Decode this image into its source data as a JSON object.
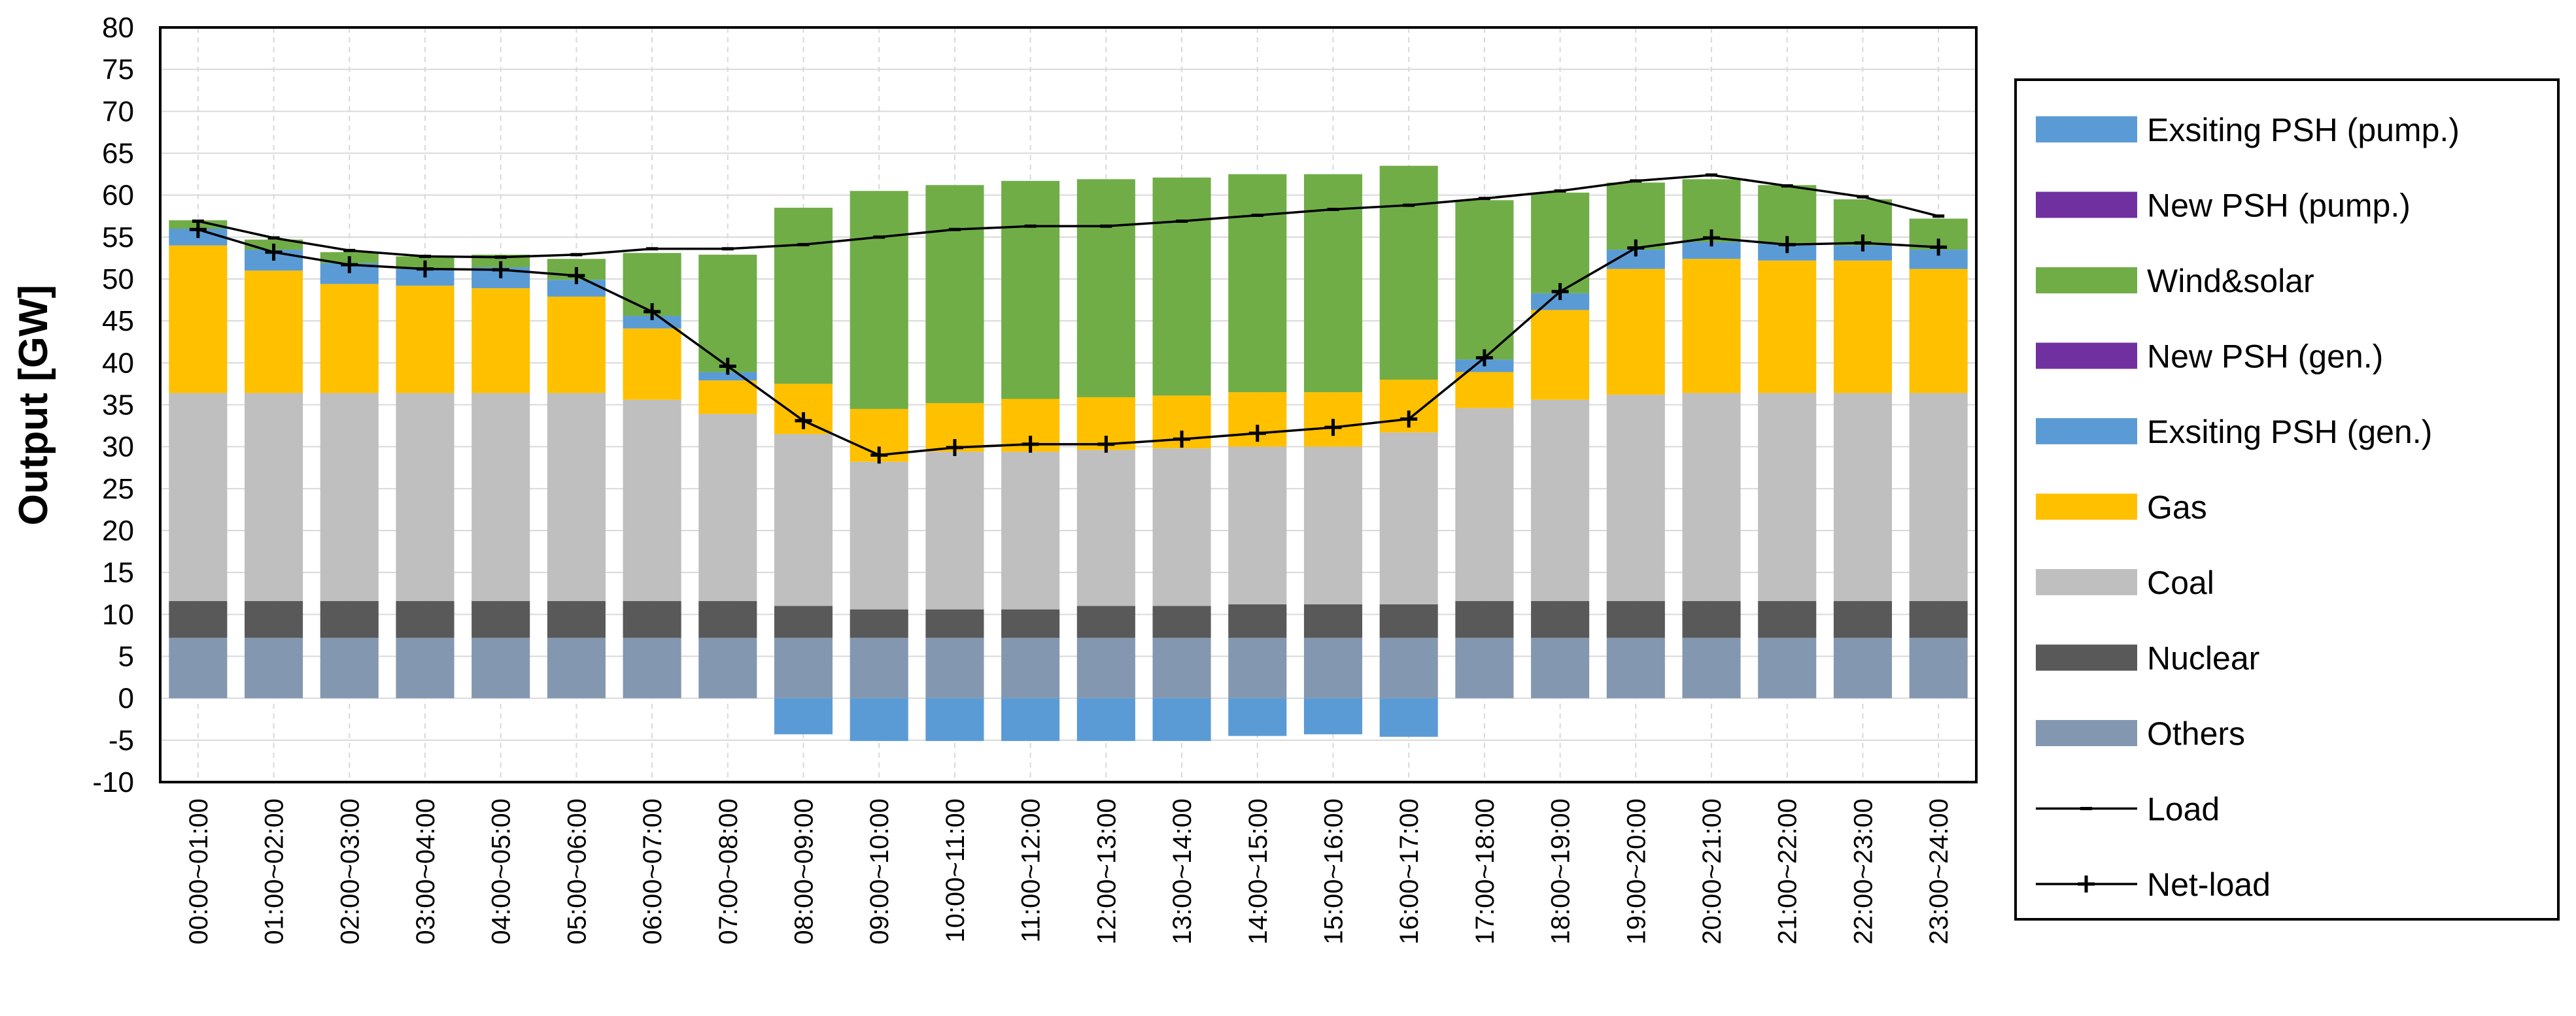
{
  "chart_data": {
    "type": "bar",
    "title": "",
    "xlabel": "",
    "ylabel": "Output [GW]",
    "ylim": [
      -10,
      80
    ],
    "ytick_step": 5,
    "grid": true,
    "legend_position": "right",
    "categories": [
      "00:00~01:00",
      "01:00~02:00",
      "02:00~03:00",
      "03:00~04:00",
      "04:00~05:00",
      "05:00~06:00",
      "06:00~07:00",
      "07:00~08:00",
      "08:00~09:00",
      "09:00~10:00",
      "10:00~11:00",
      "11:00~12:00",
      "12:00~13:00",
      "13:00~14:00",
      "14:00~15:00",
      "15:00~16:00",
      "16:00~17:00",
      "17:00~18:00",
      "18:00~19:00",
      "19:00~20:00",
      "20:00~21:00",
      "21:00~22:00",
      "22:00~23:00",
      "23:00~24:00"
    ],
    "stack_order": [
      "Others",
      "Nuclear",
      "Coal",
      "Gas",
      "Exsiting PSH (gen.)",
      "New PSH (gen.)",
      "Wind&solar"
    ],
    "series": [
      {
        "name": "Exsiting PSH (pump.)",
        "kind": "bar",
        "color": "#5B9BD5",
        "values": [
          0,
          0,
          0,
          0,
          0,
          0,
          0,
          0,
          -4.3,
          -5.1,
          -5.1,
          -5.1,
          -5.1,
          -5.1,
          -4.5,
          -4.3,
          -4.6,
          0,
          0,
          0,
          0,
          0,
          0,
          0
        ]
      },
      {
        "name": "New PSH (pump.)",
        "kind": "bar",
        "color": "#7030A0",
        "values": [
          0,
          0,
          0,
          0,
          0,
          0,
          0,
          0,
          0,
          0,
          0,
          0,
          0,
          0,
          0,
          0,
          0,
          0,
          0,
          0,
          0,
          0,
          0,
          0
        ]
      },
      {
        "name": "Wind&solar",
        "kind": "bar",
        "color": "#70AD47",
        "values": [
          1.0,
          1.2,
          1.3,
          1.5,
          1.5,
          2.5,
          7.5,
          14.0,
          21.0,
          26.0,
          26.0,
          26.0,
          26.0,
          26.0,
          26.0,
          26.0,
          25.5,
          19.0,
          12.0,
          8.0,
          7.5,
          7.0,
          5.5,
          3.7
        ]
      },
      {
        "name": "New PSH (gen.)",
        "kind": "bar",
        "color": "#7030A0",
        "values": [
          0,
          0,
          0,
          0,
          0,
          0,
          0,
          0,
          0,
          0,
          0,
          0,
          0,
          0,
          0,
          0,
          0,
          0,
          0,
          0,
          0,
          0,
          0,
          0
        ]
      },
      {
        "name": "Exsiting PSH (gen.)",
        "kind": "bar",
        "color": "#5B9BD5",
        "values": [
          2.0,
          2.5,
          2.5,
          2.0,
          2.5,
          2.0,
          1.5,
          1.0,
          0,
          0,
          0,
          0,
          0,
          0,
          0,
          0,
          0,
          1.5,
          2.0,
          2.3,
          2.0,
          2.0,
          1.8,
          2.3
        ]
      },
      {
        "name": "Gas",
        "kind": "bar",
        "color": "#FFC000",
        "values": [
          17.6,
          14.6,
          13.0,
          12.8,
          12.5,
          11.5,
          8.5,
          4.0,
          6.0,
          6.3,
          5.8,
          6.3,
          6.3,
          6.3,
          6.5,
          6.5,
          6.3,
          4.3,
          10.7,
          15.0,
          16.0,
          15.8,
          15.8,
          14.8
        ]
      },
      {
        "name": "Coal",
        "kind": "bar",
        "color": "#BFBFBF",
        "values": [
          24.8,
          24.8,
          24.8,
          24.8,
          24.8,
          24.8,
          24.0,
          22.3,
          20.5,
          17.6,
          18.8,
          18.8,
          18.6,
          18.8,
          18.8,
          18.8,
          20.5,
          23.0,
          24.0,
          24.6,
          24.8,
          24.8,
          24.8,
          24.8
        ]
      },
      {
        "name": "Nuclear",
        "kind": "bar",
        "color": "#595959",
        "values": [
          4.4,
          4.4,
          4.4,
          4.4,
          4.4,
          4.4,
          4.4,
          4.4,
          3.8,
          3.4,
          3.4,
          3.4,
          3.8,
          3.8,
          4.0,
          4.0,
          4.0,
          4.4,
          4.4,
          4.4,
          4.4,
          4.4,
          4.4,
          4.4
        ]
      },
      {
        "name": "Others",
        "kind": "bar",
        "color": "#8497B0",
        "values": [
          7.2,
          7.2,
          7.2,
          7.2,
          7.2,
          7.2,
          7.2,
          7.2,
          7.2,
          7.2,
          7.2,
          7.2,
          7.2,
          7.2,
          7.2,
          7.2,
          7.2,
          7.2,
          7.2,
          7.2,
          7.2,
          7.2,
          7.2,
          7.2
        ]
      },
      {
        "name": "Load",
        "kind": "line",
        "marker": "dash",
        "color": "#000000",
        "values": [
          56.9,
          54.9,
          53.4,
          52.7,
          52.6,
          52.9,
          53.6,
          53.6,
          54.1,
          55.0,
          55.9,
          56.3,
          56.3,
          56.9,
          57.6,
          58.3,
          58.8,
          59.6,
          60.5,
          61.7,
          62.4,
          61.1,
          59.8,
          57.5
        ]
      },
      {
        "name": "Net-load",
        "kind": "line",
        "marker": "plus",
        "color": "#000000",
        "values": [
          55.9,
          53.2,
          51.7,
          51.2,
          51.1,
          50.4,
          46.1,
          39.6,
          33.1,
          29.0,
          29.9,
          30.3,
          30.3,
          30.9,
          31.6,
          32.3,
          33.3,
          40.6,
          48.5,
          53.7,
          54.9,
          54.1,
          54.3,
          53.8
        ]
      }
    ]
  }
}
